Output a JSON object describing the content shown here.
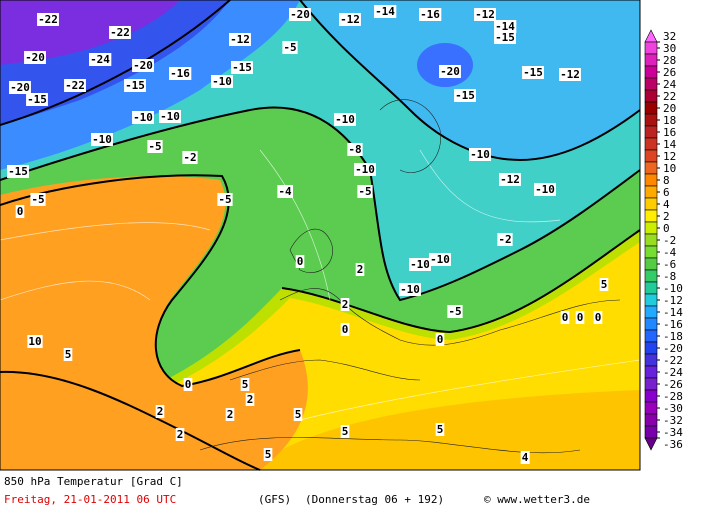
{
  "map": {
    "contour_labels": [
      -22,
      -22,
      -24,
      -20,
      -20,
      -16,
      -15,
      -20,
      -15,
      -22,
      -10,
      -10,
      -5,
      -10,
      -15,
      -15,
      -10,
      -12,
      -20,
      -5,
      -12,
      -14,
      -16,
      -12,
      -14,
      -15,
      -20,
      -15,
      -15,
      -12,
      -10,
      -8,
      -10,
      -5,
      -10,
      -12,
      -10,
      -5,
      -2,
      -10,
      -10,
      -10,
      -5,
      0,
      0,
      0,
      10,
      5,
      0,
      5,
      2,
      5,
      5,
      5,
      2,
      2,
      5,
      4,
      2,
      2,
      -4,
      -2,
      0,
      -5,
      2,
      0,
      0,
      5,
      0
    ]
  },
  "colorbar": {
    "ticks": [
      32,
      30,
      28,
      26,
      24,
      22,
      20,
      18,
      16,
      14,
      12,
      10,
      8,
      6,
      4,
      2,
      0,
      -2,
      -4,
      -6,
      -8,
      -10,
      -12,
      -14,
      -16,
      -18,
      -20,
      -22,
      -24,
      -26,
      -28,
      -30,
      -32,
      -34,
      -36
    ],
    "colors": [
      "#ff66ff",
      "#ee44dd",
      "#dd22bb",
      "#cc0099",
      "#bb0066",
      "#aa0033",
      "#990000",
      "#aa1111",
      "#bb2222",
      "#cc3322",
      "#dd4422",
      "#ee6622",
      "#ff8800",
      "#ffaa00",
      "#ffcc00",
      "#ffee00",
      "#ccee00",
      "#99dd22",
      "#77dd33",
      "#55cc44",
      "#33cc66",
      "#22cc99",
      "#22ccdd",
      "#22aaff",
      "#2288ff",
      "#2266ff",
      "#2244ee",
      "#4433dd",
      "#6622dd",
      "#7722cc",
      "#8800cc",
      "#9900bb",
      "#8800aa",
      "#7700aa",
      "#660088"
    ]
  },
  "footer": {
    "title": "850 hPa Temperatur [Grad C]",
    "date": "Freitag, 21-01-2011  06 UTC",
    "model": "(GFS)",
    "forecast": "(Donnerstag 06 + 192)",
    "source": "© www.wetter3.de"
  }
}
